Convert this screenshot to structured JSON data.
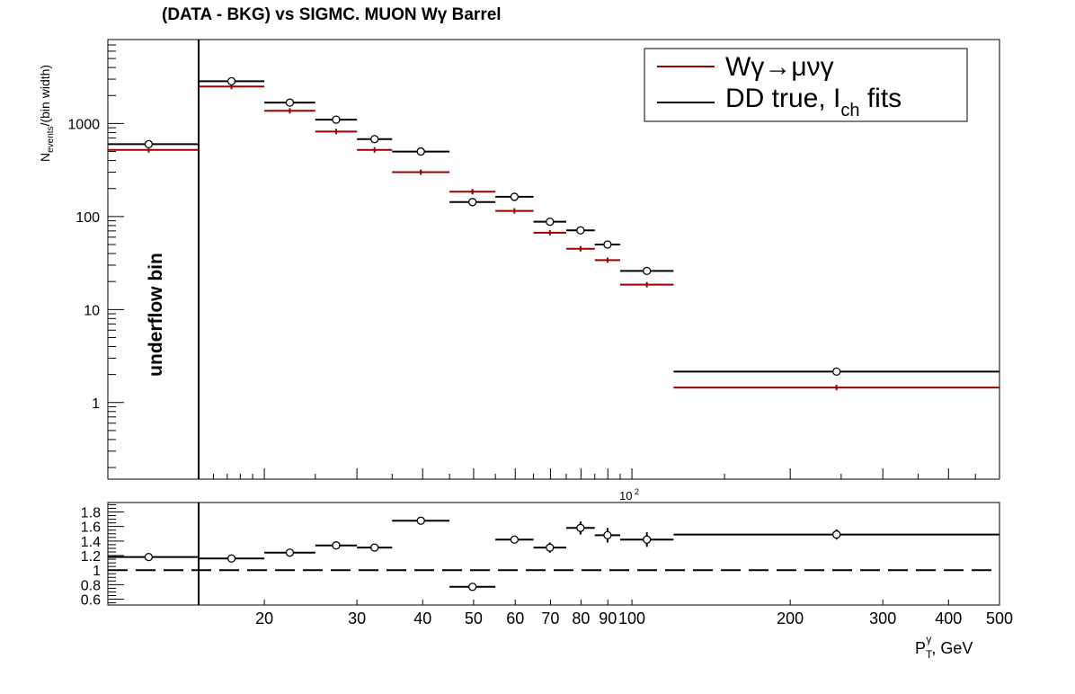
{
  "chart_data": [
    {
      "type": "scatter",
      "title": "(DATA - BKG) vs SIGMC. MUON Wγ  Barrel",
      "ylabel_main": "N",
      "ylabel_sub": "events",
      "ylabel_tail": "/(bin width)",
      "xscale": "log",
      "yscale": "log",
      "xlim": [
        10,
        500
      ],
      "ylim": [
        0.15,
        8000
      ],
      "y_tick_labels": [
        "1",
        "10",
        "100",
        "1000"
      ],
      "x_exponent_label": "10",
      "x_exponent_power": "2",
      "annotation": "underflow bin",
      "legend_position": "top-right",
      "series": [
        {
          "name": "Wγ→μνγ",
          "color": "#990000",
          "marker": "none",
          "points": [
            {
              "xlo": 10,
              "xhi": 15,
              "y": 520
            },
            {
              "xlo": 15,
              "xhi": 20,
              "y": 2500
            },
            {
              "xlo": 20,
              "xhi": 25,
              "y": 1370
            },
            {
              "xlo": 25,
              "xhi": 30,
              "y": 820
            },
            {
              "xlo": 30,
              "xhi": 35,
              "y": 520
            },
            {
              "xlo": 35,
              "xhi": 45,
              "y": 300
            },
            {
              "xlo": 45,
              "xhi": 55,
              "y": 185
            },
            {
              "xlo": 55,
              "xhi": 65,
              "y": 115
            },
            {
              "xlo": 65,
              "xhi": 75,
              "y": 67
            },
            {
              "xlo": 75,
              "xhi": 85,
              "y": 45
            },
            {
              "xlo": 85,
              "xhi": 95,
              "y": 34
            },
            {
              "xlo": 95,
              "xhi": 120,
              "y": 18.5
            },
            {
              "xlo": 120,
              "xhi": 500,
              "y": 1.45
            }
          ]
        },
        {
          "name_main": "DD true, I",
          "name_sub": "ch",
          "name_tail": " fits",
          "color": "#000000",
          "marker": "open-circle",
          "points": [
            {
              "xlo": 10,
              "xhi": 15,
              "y": 600
            },
            {
              "xlo": 15,
              "xhi": 20,
              "y": 2850
            },
            {
              "xlo": 20,
              "xhi": 25,
              "y": 1680
            },
            {
              "xlo": 25,
              "xhi": 30,
              "y": 1100
            },
            {
              "xlo": 30,
              "xhi": 35,
              "y": 680
            },
            {
              "xlo": 35,
              "xhi": 45,
              "y": 500
            },
            {
              "xlo": 45,
              "xhi": 55,
              "y": 143
            },
            {
              "xlo": 55,
              "xhi": 65,
              "y": 163
            },
            {
              "xlo": 65,
              "xhi": 75,
              "y": 88
            },
            {
              "xlo": 75,
              "xhi": 85,
              "y": 71
            },
            {
              "xlo": 85,
              "xhi": 95,
              "y": 50
            },
            {
              "xlo": 95,
              "xhi": 120,
              "y": 26
            },
            {
              "xlo": 120,
              "xhi": 500,
              "y": 2.15
            }
          ]
        }
      ]
    },
    {
      "type": "scatter",
      "xlabel_main": "P",
      "xlabel_sub": "T",
      "xlabel_sup": "γ",
      "xlabel_tail": ", GeV",
      "xscale": "log",
      "xlim": [
        10,
        500
      ],
      "ylim": [
        0.52,
        1.93
      ],
      "y_tick_labels": [
        "0.6",
        "0.8",
        "1",
        "1.2",
        "1.4",
        "1.6",
        "1.8"
      ],
      "x_tick_labels": [
        "20",
        "30",
        "40",
        "50",
        "60",
        "70",
        "80",
        "90",
        "100",
        "200",
        "300",
        "400",
        "500"
      ],
      "reference_line": 1,
      "series": [
        {
          "name": "",
          "color": "#000000",
          "marker": "open-circle",
          "points": [
            {
              "xlo": 10,
              "xhi": 15,
              "y": 1.18,
              "err": 0.02
            },
            {
              "xlo": 15,
              "xhi": 20,
              "y": 1.16,
              "err": 0.02
            },
            {
              "xlo": 20,
              "xhi": 25,
              "y": 1.24,
              "err": 0.02
            },
            {
              "xlo": 25,
              "xhi": 30,
              "y": 1.34,
              "err": 0.03
            },
            {
              "xlo": 30,
              "xhi": 35,
              "y": 1.31,
              "err": 0.03
            },
            {
              "xlo": 35,
              "xhi": 45,
              "y": 1.68,
              "err": 0.03
            },
            {
              "xlo": 45,
              "xhi": 55,
              "y": 0.77,
              "err": 0.02
            },
            {
              "xlo": 55,
              "xhi": 65,
              "y": 1.42,
              "err": 0.05
            },
            {
              "xlo": 65,
              "xhi": 75,
              "y": 1.31,
              "err": 0.07
            },
            {
              "xlo": 75,
              "xhi": 85,
              "y": 1.58,
              "err": 0.09
            },
            {
              "xlo": 85,
              "xhi": 95,
              "y": 1.48,
              "err": 0.1
            },
            {
              "xlo": 95,
              "xhi": 120,
              "y": 1.42,
              "err": 0.1
            },
            {
              "xlo": 120,
              "xhi": 500,
              "y": 1.49,
              "err": 0.07
            }
          ]
        }
      ]
    }
  ]
}
